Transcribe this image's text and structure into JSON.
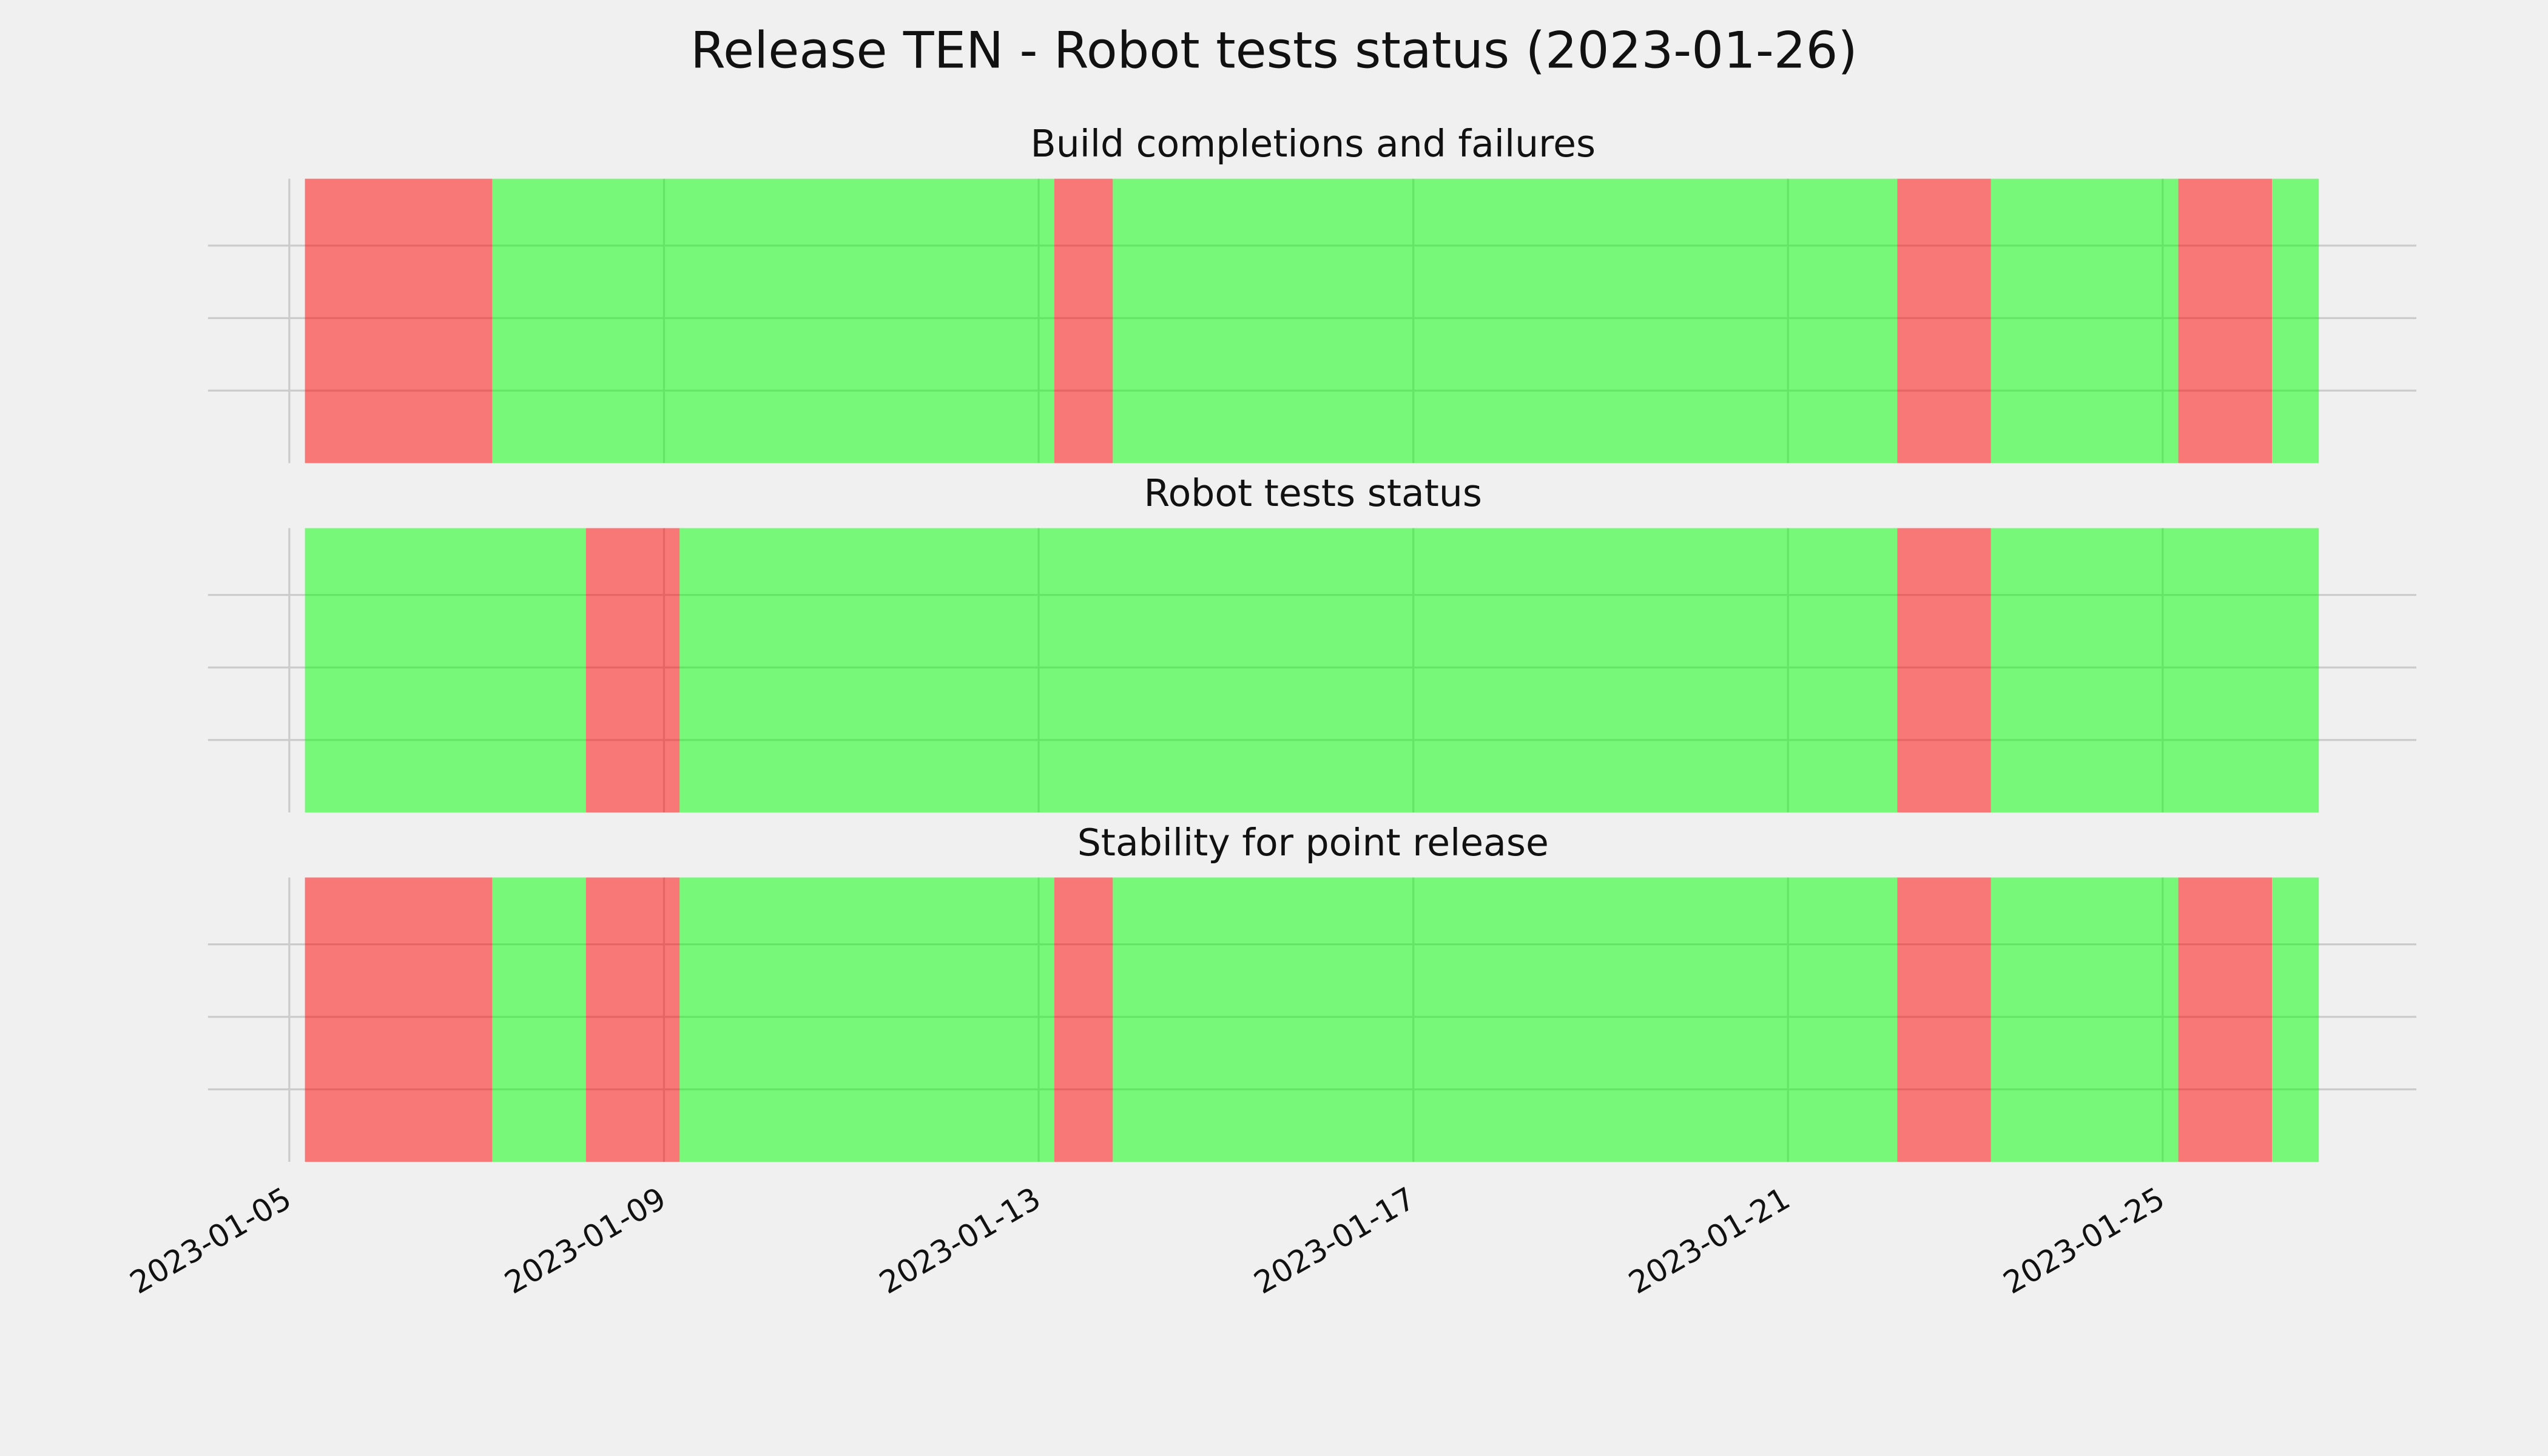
{
  "title": "Release TEN - Robot tests status (2023-01-26)",
  "chart_data": [
    {
      "type": "timeline",
      "title": "Build completions and failures",
      "x": [
        "2023-01-05 04:00",
        "2023-01-07 04:00",
        "2023-01-13 04:00",
        "2023-01-13 19:00",
        "2023-01-22 04:00",
        "2023-01-23 04:00",
        "2023-01-25 04:00",
        "2023-01-26 04:00",
        "2023-01-26 16:00"
      ],
      "colors": [
        "#ff0000",
        "#00ff00",
        "#ff0000",
        "#00ff00",
        "#ff0000",
        "#00ff00",
        "#ff0000",
        "#00ff00"
      ],
      "alpha": 0.5,
      "xlim": [
        "2023-01-04 03:10",
        "2023-01-27 17:00"
      ],
      "xticks": [
        "2023-01-05",
        "2023-01-09",
        "2023-01-13",
        "2023-01-17",
        "2023-01-21",
        "2023-01-25"
      ],
      "grid": true
    },
    {
      "type": "timeline",
      "title": "Robot tests status",
      "x": [
        "2023-01-05 04:00",
        "2023-01-08 04:00",
        "2023-01-09 04:00",
        "2023-01-22 04:00",
        "2023-01-23 04:00",
        "2023-01-26 16:00"
      ],
      "colors": [
        "#00ff00",
        "#ff0000",
        "#00ff00",
        "#ff0000",
        "#00ff00"
      ],
      "alpha": 0.5,
      "xlim": [
        "2023-01-04 03:10",
        "2023-01-27 17:00"
      ],
      "xticks": [
        "2023-01-05",
        "2023-01-09",
        "2023-01-13",
        "2023-01-17",
        "2023-01-21",
        "2023-01-25"
      ],
      "grid": true
    },
    {
      "type": "timeline",
      "title": "Stability for point release",
      "x": [
        "2023-01-05 04:00",
        "2023-01-07 04:00",
        "2023-01-08 04:00",
        "2023-01-09 04:00",
        "2023-01-13 04:00",
        "2023-01-13 19:00",
        "2023-01-22 04:00",
        "2023-01-23 04:00",
        "2023-01-25 04:00",
        "2023-01-26 04:00",
        "2023-01-26 16:00"
      ],
      "colors": [
        "#ff0000",
        "#00ff00",
        "#ff0000",
        "#00ff00",
        "#ff0000",
        "#00ff00",
        "#ff0000",
        "#00ff00",
        "#ff0000",
        "#00ff00"
      ],
      "alpha": 0.5,
      "xlim": [
        "2023-01-04 03:10",
        "2023-01-27 17:00"
      ],
      "xticks": [
        "2023-01-05",
        "2023-01-09",
        "2023-01-13",
        "2023-01-17",
        "2023-01-21",
        "2023-01-25"
      ],
      "grid": true
    }
  ]
}
